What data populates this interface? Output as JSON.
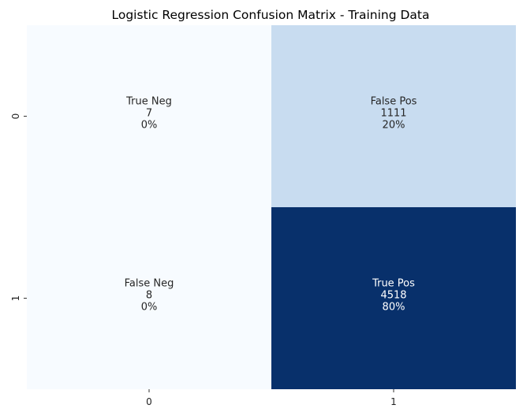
{
  "chart_data": {
    "type": "heatmap",
    "title": "Logistic Regression Confusion Matrix - Training Data",
    "xlabel": "",
    "ylabel": "",
    "x_tick_labels": [
      "0",
      "1"
    ],
    "y_tick_labels": [
      "0",
      "1"
    ],
    "colormap": "Blues",
    "colorbar": false,
    "cells": [
      {
        "row": 0,
        "col": 0,
        "label": "True Neg",
        "count": 7,
        "count_text": "7",
        "percent_text": "0%",
        "fill": "#f7fbff",
        "text_color": "#262626"
      },
      {
        "row": 0,
        "col": 1,
        "label": "False Pos",
        "count": 1111,
        "count_text": "1111",
        "percent_text": "20%",
        "fill": "#c8dcf0",
        "text_color": "#262626"
      },
      {
        "row": 1,
        "col": 0,
        "label": "False Neg",
        "count": 8,
        "count_text": "8",
        "percent_text": "0%",
        "fill": "#f7fbff",
        "text_color": "#262626"
      },
      {
        "row": 1,
        "col": 1,
        "label": "True Pos",
        "count": 4518,
        "count_text": "4518",
        "percent_text": "80%",
        "fill": "#08306b",
        "text_color": "#ffffff"
      }
    ]
  }
}
